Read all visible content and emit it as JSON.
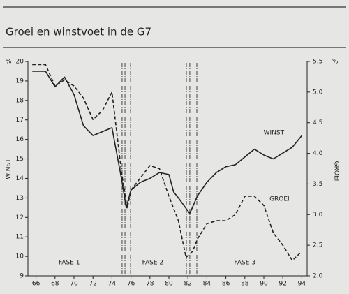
{
  "chart_data": {
    "type": "line",
    "title": "Groei en winstvoet in de G7",
    "y_label": "WINST",
    "y2_label": "GROEI",
    "y_unit": "%",
    "y2_unit": "%",
    "xlim": [
      65,
      95
    ],
    "xticks": [
      66,
      68,
      70,
      72,
      74,
      76,
      78,
      80,
      82,
      84,
      86,
      88,
      90,
      92,
      94
    ],
    "ylim": [
      9,
      20
    ],
    "yticks": [
      9,
      10,
      11,
      12,
      13,
      14,
      15,
      16,
      17,
      18,
      19,
      20
    ],
    "y2lim": [
      2,
      5.5
    ],
    "y2ticks": [
      {
        "value": 2,
        "label": "2.0"
      },
      2.5,
      {
        "value": 3,
        "label": "3.0"
      },
      3.5,
      {
        "value": 4,
        "label": "4.0"
      },
      4.5,
      {
        "value": 5,
        "label": "5.0"
      },
      5.5
    ],
    "series": [
      {
        "name": "WINST",
        "color": "#222222",
        "dash": "solid",
        "x": [
          65.6,
          67,
          68,
          69,
          70,
          71,
          72,
          73,
          74,
          75,
          75.5,
          76,
          77,
          78,
          79,
          80,
          80.5,
          81,
          82.2,
          83,
          84,
          85,
          86,
          87,
          88,
          89,
          90,
          91,
          92,
          93,
          94
        ],
        "values": [
          19.5,
          19.5,
          18.7,
          19.2,
          18.3,
          16.7,
          16.2,
          16.4,
          16.6,
          14.0,
          12.5,
          13.4,
          13.8,
          14.0,
          14.3,
          14.2,
          13.3,
          13.0,
          12.2,
          13.1,
          13.8,
          14.3,
          14.6,
          14.7,
          15.1,
          15.5,
          15.2,
          15.0,
          15.3,
          15.6,
          16.2
        ]
      },
      {
        "name": "GROEI",
        "color": "#222222",
        "dash": "dashed",
        "axis": "y2",
        "x": [
          65.6,
          67,
          68,
          69,
          70,
          71,
          72,
          73,
          74,
          75,
          75.6,
          76,
          77,
          78,
          79,
          80,
          81,
          81.8,
          82.5,
          83,
          84,
          85,
          86,
          87,
          88,
          89,
          90,
          91,
          92,
          93,
          94
        ],
        "values": [
          5.45,
          5.45,
          5.1,
          5.2,
          5.1,
          4.9,
          4.55,
          4.7,
          5.0,
          3.7,
          3.1,
          3.4,
          3.6,
          3.8,
          3.75,
          3.3,
          2.9,
          2.3,
          2.4,
          2.6,
          2.85,
          2.9,
          2.9,
          3.0,
          3.3,
          3.3,
          3.15,
          2.7,
          2.5,
          2.25,
          2.4
        ]
      }
    ],
    "phase_lines": [
      75.07,
      75.37,
      75.96,
      81.84,
      82.2,
      82.94
    ],
    "phases": [
      {
        "label": "FASE 1",
        "x": 69.5
      },
      {
        "label": "FASE 2",
        "x": 78.3
      },
      {
        "label": "FASE 3",
        "x": 88
      }
    ]
  }
}
